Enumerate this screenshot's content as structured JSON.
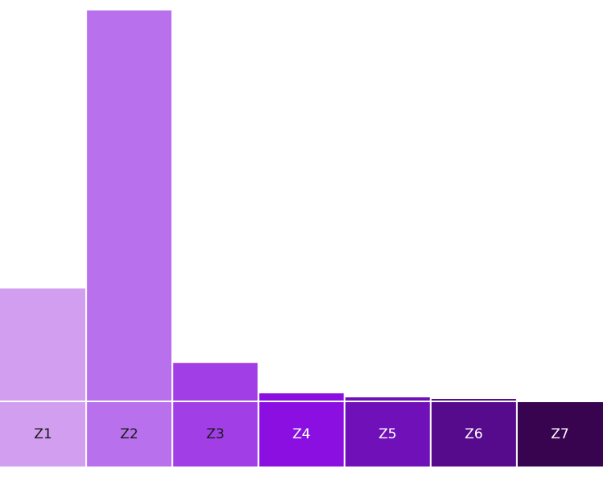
{
  "chart_data": {
    "type": "bar",
    "categories": [
      "Z1",
      "Z2",
      "Z3",
      "Z4",
      "Z5",
      "Z6",
      "Z7"
    ],
    "values": [
      140,
      487,
      47,
      9,
      4,
      2,
      0
    ],
    "ylim": [
      0,
      487
    ],
    "grid": false,
    "legend": "none",
    "colors": [
      "#d19ef0",
      "#b870ec",
      "#a23ee6",
      "#8b0fe0",
      "#7010b8",
      "#560b8c",
      "#380450"
    ],
    "label_colors": [
      "#1a1a1a",
      "#1a1a1a",
      "#1a1a1a",
      "#ffffff",
      "#ffffff",
      "#ffffff",
      "#ffffff"
    ]
  }
}
